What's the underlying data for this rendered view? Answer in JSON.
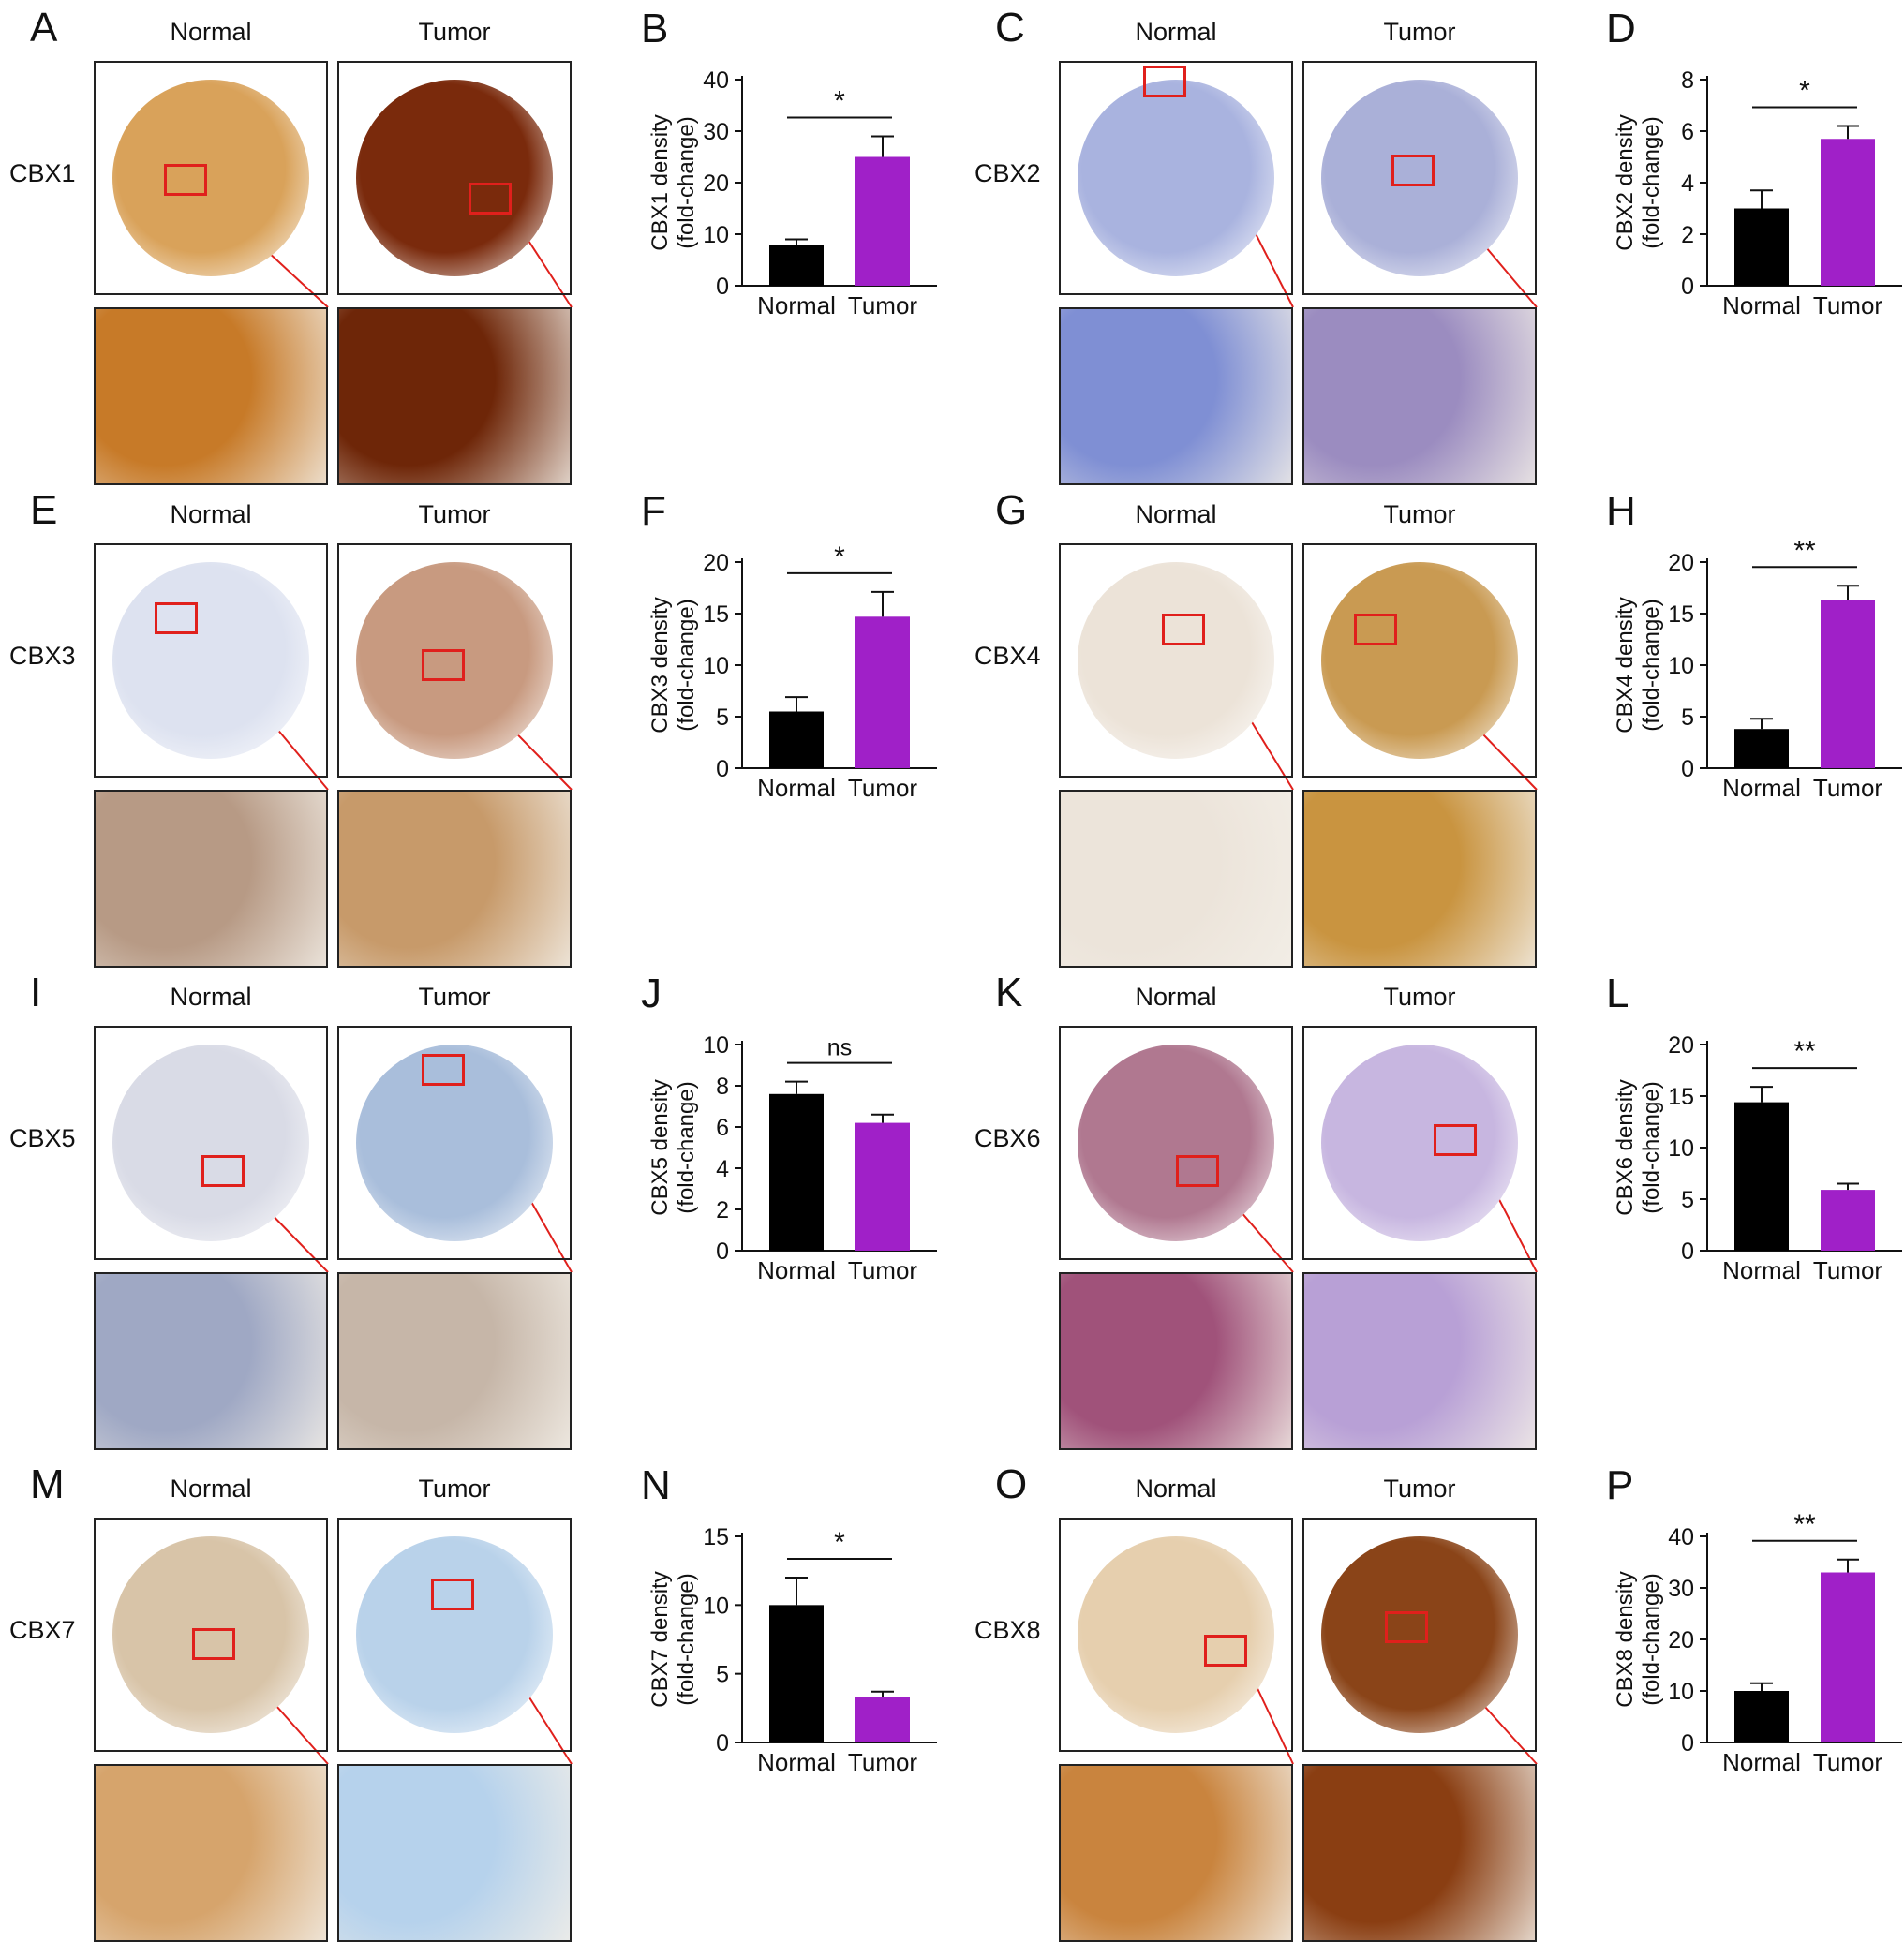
{
  "panels": [
    {
      "letter": "A",
      "gene": "CBX1",
      "normal": "Normal",
      "tumor": "Tumor"
    },
    {
      "letter": "C",
      "gene": "CBX2",
      "normal": "Normal",
      "tumor": "Tumor"
    },
    {
      "letter": "E",
      "gene": "CBX3",
      "normal": "Normal",
      "tumor": "Tumor"
    },
    {
      "letter": "G",
      "gene": "CBX4",
      "normal": "Normal",
      "tumor": "Tumor"
    },
    {
      "letter": "I",
      "gene": "CBX5",
      "normal": "Normal",
      "tumor": "Tumor"
    },
    {
      "letter": "K",
      "gene": "CBX6",
      "normal": "Normal",
      "tumor": "Tumor"
    },
    {
      "letter": "M",
      "gene": "CBX7",
      "normal": "Normal",
      "tumor": "Tumor"
    },
    {
      "letter": "O",
      "gene": "CBX8",
      "normal": "Normal",
      "tumor": "Tumor"
    }
  ],
  "tissue_colors": {
    "CBX1": {
      "normal": "#d9a25a",
      "tumor": "#7a2a0c",
      "normal_zoom": "#c77a28",
      "tumor_zoom": "#6e2608"
    },
    "CBX2": {
      "normal": "#a9b3df",
      "tumor": "#aab0d8",
      "normal_zoom": "#7f8fd4",
      "tumor_zoom": "#9b8cc0"
    },
    "CBX3": {
      "normal": "#dde2f0",
      "tumor": "#c89a80",
      "normal_zoom": "#b79a85",
      "tumor_zoom": "#c79a6a"
    },
    "CBX4": {
      "normal": "#ece3d8",
      "tumor": "#c99a52",
      "normal_zoom": "#ece4da",
      "tumor_zoom": "#c99440"
    },
    "CBX5": {
      "normal": "#d9dbe6",
      "tumor": "#a9bedb",
      "normal_zoom": "#9fa8c4",
      "tumor_zoom": "#c6b6a8"
    },
    "CBX6": {
      "normal": "#b07890",
      "tumor": "#c7b6e0",
      "normal_zoom": "#a0527a",
      "tumor_zoom": "#b8a0d6"
    },
    "CBX7": {
      "normal": "#d8c4a8",
      "tumor": "#b9d2ea",
      "normal_zoom": "#d6a46c",
      "tumor_zoom": "#b6d2ec"
    },
    "CBX8": {
      "normal": "#e6cfae",
      "tumor": "#8a4418",
      "normal_zoom": "#c9843e",
      "tumor_zoom": "#8a3e12"
    }
  },
  "chart_data": [
    {
      "letter": "B",
      "type": "bar",
      "categories": [
        "Normal",
        "Tumor"
      ],
      "values": [
        8,
        25
      ],
      "errors": [
        1,
        4
      ],
      "ylabel": "CBX1 density\n(fold-change)",
      "ylim": [
        0,
        40
      ],
      "ticks": [
        0,
        10,
        20,
        30,
        40
      ],
      "significance": "*",
      "colors": [
        "#000000",
        "#a020c8"
      ]
    },
    {
      "letter": "D",
      "type": "bar",
      "categories": [
        "Normal",
        "Tumor"
      ],
      "values": [
        3.0,
        5.7
      ],
      "errors": [
        0.7,
        0.5
      ],
      "ylabel": "CBX2 density\n(fold-change)",
      "ylim": [
        0,
        8
      ],
      "ticks": [
        0,
        2,
        4,
        6,
        8
      ],
      "significance": "*",
      "colors": [
        "#000000",
        "#a020c8"
      ]
    },
    {
      "letter": "F",
      "type": "bar",
      "categories": [
        "Normal",
        "Tumor"
      ],
      "values": [
        5.5,
        14.7
      ],
      "errors": [
        1.4,
        2.4
      ],
      "ylabel": "CBX3 density\n(fold-change)",
      "ylim": [
        0,
        20
      ],
      "ticks": [
        0,
        5,
        10,
        15,
        20
      ],
      "significance": "*",
      "colors": [
        "#000000",
        "#a020c8"
      ]
    },
    {
      "letter": "H",
      "type": "bar",
      "categories": [
        "Normal",
        "Tumor"
      ],
      "values": [
        3.8,
        16.3
      ],
      "errors": [
        1.0,
        1.4
      ],
      "ylabel": "CBX4 density\n(fold-change)",
      "ylim": [
        0,
        20
      ],
      "ticks": [
        0,
        5,
        10,
        15,
        20
      ],
      "significance": "**",
      "colors": [
        "#000000",
        "#a020c8"
      ]
    },
    {
      "letter": "J",
      "type": "bar",
      "categories": [
        "Normal",
        "Tumor"
      ],
      "values": [
        7.6,
        6.2
      ],
      "errors": [
        0.6,
        0.4
      ],
      "ylabel": "CBX5 density\n(fold-change)",
      "ylim": [
        0,
        10
      ],
      "ticks": [
        0,
        2,
        4,
        6,
        8,
        10
      ],
      "significance": "ns",
      "colors": [
        "#000000",
        "#a020c8"
      ]
    },
    {
      "letter": "L",
      "type": "bar",
      "categories": [
        "Normal",
        "Tumor"
      ],
      "values": [
        14.4,
        5.9
      ],
      "errors": [
        1.5,
        0.6
      ],
      "ylabel": "CBX6 density\n(fold-change)",
      "ylim": [
        0,
        20
      ],
      "ticks": [
        0,
        5,
        10,
        15,
        20
      ],
      "significance": "**",
      "colors": [
        "#000000",
        "#a020c8"
      ]
    },
    {
      "letter": "N",
      "type": "bar",
      "categories": [
        "Normal",
        "Tumor"
      ],
      "values": [
        10.0,
        3.3
      ],
      "errors": [
        2.0,
        0.4
      ],
      "ylabel": "CBX7 density\n(fold-change)",
      "ylim": [
        0,
        15
      ],
      "ticks": [
        0,
        5,
        10,
        15
      ],
      "significance": "*",
      "colors": [
        "#000000",
        "#a020c8"
      ]
    },
    {
      "letter": "P",
      "type": "bar",
      "categories": [
        "Normal",
        "Tumor"
      ],
      "values": [
        10.0,
        33.0
      ],
      "errors": [
        1.5,
        2.5
      ],
      "ylabel": "CBX8 density\n(fold-change)",
      "ylim": [
        0,
        40
      ],
      "ticks": [
        0,
        10,
        20,
        30,
        40
      ],
      "significance": "**",
      "colors": [
        "#000000",
        "#a020c8"
      ]
    }
  ]
}
